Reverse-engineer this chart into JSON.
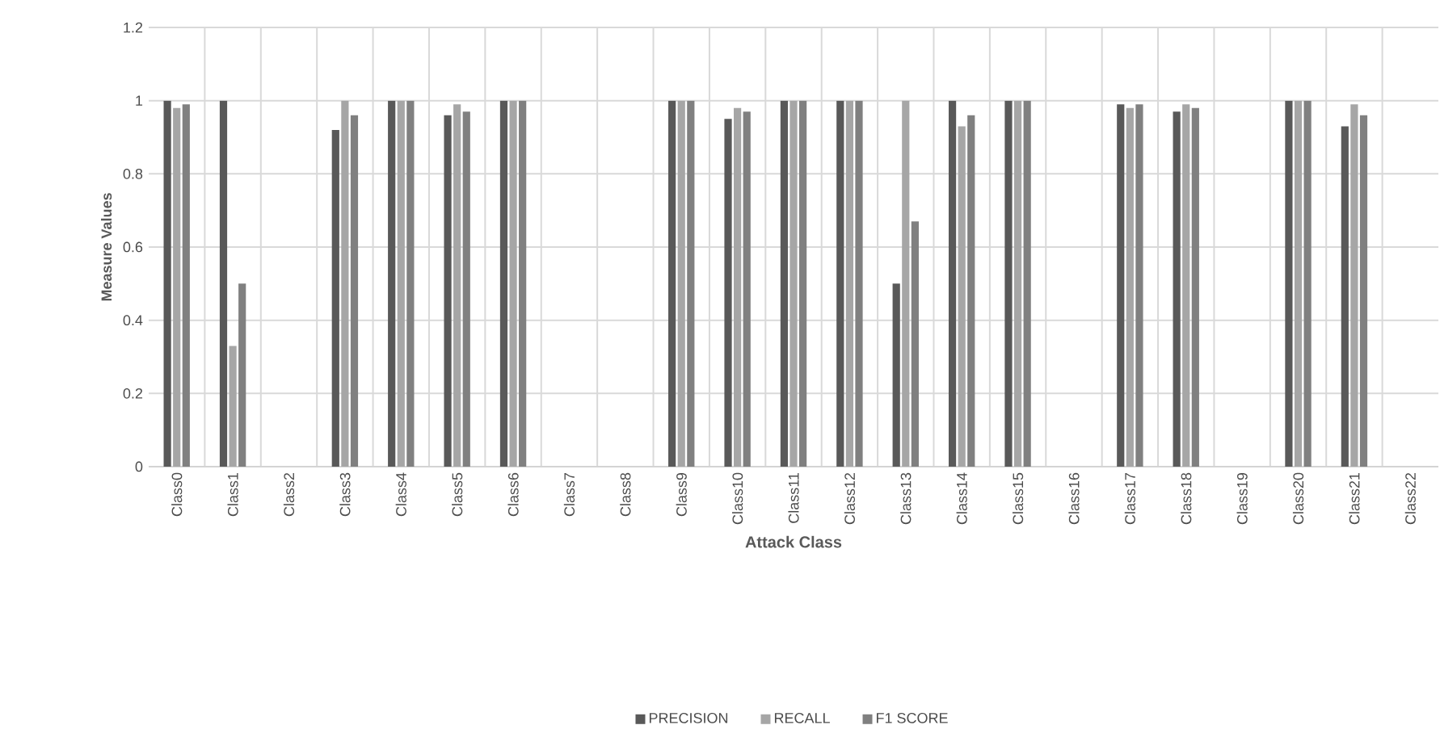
{
  "chart_data": {
    "type": "bar",
    "xlabel": "Attack Class",
    "ylabel": "Measure Values",
    "categories": [
      "Class0",
      "Class1",
      "Class2",
      "Class3",
      "Class4",
      "Class5",
      "Class6",
      "Class7",
      "Class8",
      "Class9",
      "Class10",
      "Class11",
      "Class12",
      "Class13",
      "Class14",
      "Class15",
      "Class16",
      "Class17",
      "Class18",
      "Class19",
      "Class20",
      "Class21",
      "Class22"
    ],
    "series": [
      {
        "name": "PRECISION",
        "color": "#595959",
        "values": [
          1,
          1,
          0,
          0.92,
          1,
          0.96,
          1,
          0,
          0,
          1,
          0.95,
          1,
          1,
          0.5,
          1,
          1,
          0,
          0.99,
          0.97,
          0,
          1,
          0.93,
          0
        ]
      },
      {
        "name": "RECALL",
        "color": "#a6a6a6",
        "values": [
          0.98,
          0.33,
          0,
          1,
          1,
          0.99,
          1,
          0,
          0,
          1,
          0.98,
          1,
          1,
          1,
          0.93,
          1,
          0,
          0.98,
          0.99,
          0,
          1,
          0.99,
          0
        ]
      },
      {
        "name": "F1 SCORE",
        "color": "#808080",
        "values": [
          0.99,
          0.5,
          0,
          0.96,
          1,
          0.97,
          1,
          0,
          0,
          1,
          0.97,
          1,
          1,
          0.67,
          0.96,
          1,
          0,
          0.99,
          0.98,
          0,
          1,
          0.96,
          0
        ]
      }
    ],
    "ylim": [
      0,
      1.2
    ],
    "yticks": [
      0,
      0.2,
      0.4,
      0.6,
      0.8,
      1,
      1.2
    ],
    "grid": true,
    "legend": "bottom"
  }
}
